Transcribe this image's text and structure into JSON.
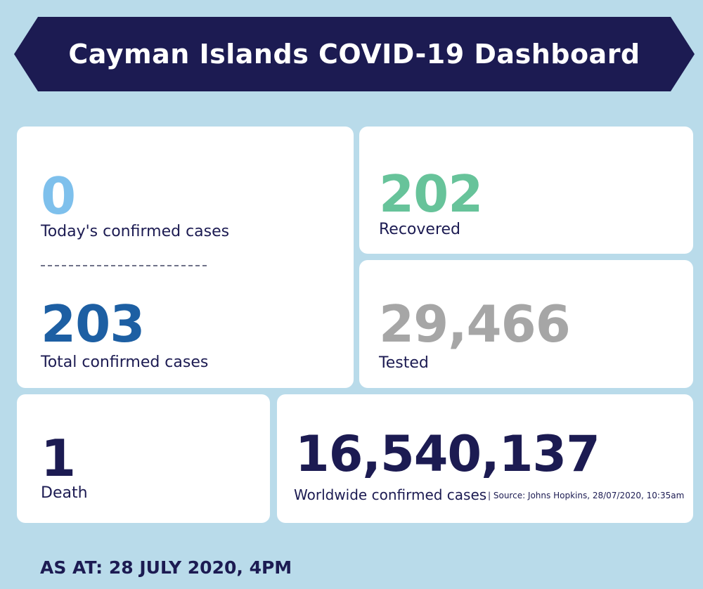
{
  "title": "Cayman Islands COVID-19 Dashboard",
  "colors": {
    "background": "#b9dbea",
    "banner": "#1c1b52",
    "todays_cases": "#7ec0ec",
    "total_cases": "#1d5fa3",
    "recovered": "#67c39a",
    "tested": "#a6a6a6",
    "dark_text": "#1c1b52"
  },
  "stats": {
    "todays_cases": {
      "value": "0",
      "label": "Today's confirmed cases"
    },
    "total_cases": {
      "value": "203",
      "label": "Total confirmed cases"
    },
    "recovered": {
      "value": "202",
      "label": "Recovered"
    },
    "tested": {
      "value": "29,466",
      "label": "Tested"
    },
    "death": {
      "value": "1",
      "label": "Death"
    },
    "worldwide": {
      "value": "16,540,137",
      "label": "Worldwide confirmed cases",
      "source": "| Source: Johns Hopkins, 28/07/2020, 10:35am"
    }
  },
  "as_at": "AS AT: 28 JULY 2020, 4PM"
}
